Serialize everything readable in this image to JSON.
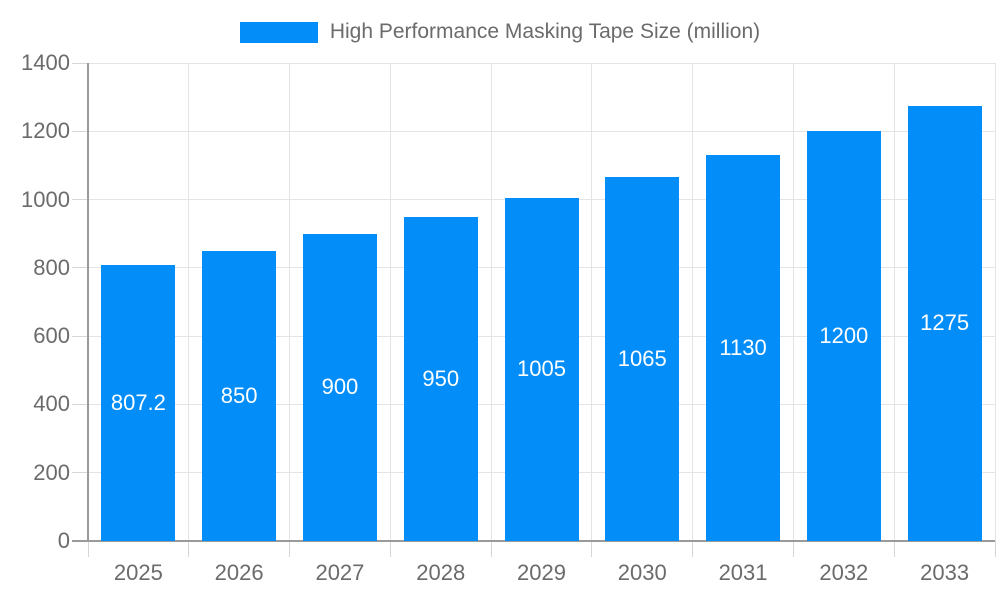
{
  "chart_data": {
    "type": "bar",
    "title": "High Performance Masking Tape Size (million)",
    "categories": [
      "2025",
      "2026",
      "2027",
      "2028",
      "2029",
      "2030",
      "2031",
      "2032",
      "2033"
    ],
    "values": [
      807.2,
      850,
      900,
      950,
      1005,
      1065,
      1130,
      1200,
      1275
    ],
    "value_labels": [
      "807.2",
      "850",
      "900",
      "950",
      "1005",
      "1065",
      "1130",
      "1200",
      "1275"
    ],
    "xlabel": "",
    "ylabel": "",
    "ylim": [
      0,
      1400
    ],
    "yticks": [
      0,
      200,
      400,
      600,
      800,
      1000,
      1200,
      1400
    ],
    "grid": true,
    "legend_position": "top",
    "colors": {
      "bar": "#028df8",
      "axis_text": "#6b6b6b",
      "grid_line": "#e4e4e4",
      "tick_line": "#d6d6d6",
      "axis_line": "#9a9a9a",
      "value_text": "#ffffff",
      "background": "#ffffff"
    }
  }
}
